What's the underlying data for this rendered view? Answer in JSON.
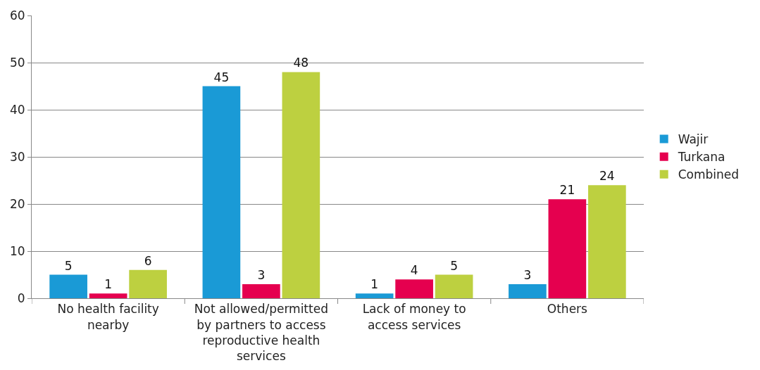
{
  "chart_data": {
    "type": "bar",
    "categories": [
      "No health facility nearby",
      "Not allowed/permitted by partners to access reproductive health services",
      "Lack of money to access services",
      "Others"
    ],
    "series": [
      {
        "name": "Wajir",
        "color": "#1a9ad6",
        "values": [
          5,
          45,
          1,
          3
        ]
      },
      {
        "name": "Turkana",
        "color": "#e5004f",
        "values": [
          1,
          3,
          4,
          21
        ]
      },
      {
        "name": "Combined",
        "color": "#bdd040",
        "values": [
          6,
          48,
          5,
          24
        ]
      }
    ],
    "ylim": [
      0,
      60
    ],
    "yticks": [
      0,
      10,
      20,
      30,
      40,
      50,
      60
    ],
    "grid": "y",
    "legend": "right",
    "data_labels": true
  }
}
